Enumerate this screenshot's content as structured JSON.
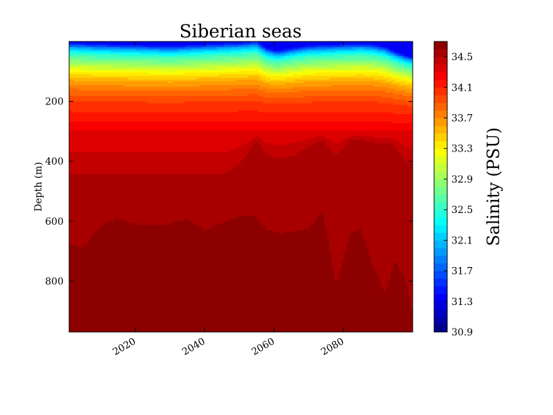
{
  "chart_data": {
    "type": "heatmap",
    "title": "Siberian seas",
    "xlabel": "",
    "ylabel": "Depth (m)",
    "xlim": [
      2001,
      2100
    ],
    "ylim": [
      970,
      0
    ],
    "x_ticks": [
      2020,
      2040,
      2060,
      2080
    ],
    "y_ticks": [
      200,
      400,
      600,
      800
    ],
    "colorbar": {
      "label": "Salinity (PSU)",
      "range": [
        30.9,
        34.7
      ],
      "ticks": [
        "30.9",
        "31.3",
        "31.7",
        "32.1",
        "32.5",
        "32.9",
        "33.3",
        "33.7",
        "34.1",
        "34.5"
      ],
      "colormap": "jet",
      "levels": 38
    },
    "profile_depth_m": [
      0,
      10,
      20,
      40,
      70,
      100,
      130,
      160,
      200,
      250,
      300,
      350,
      400,
      500,
      600,
      700,
      800,
      970
    ],
    "profile_salinity_psu": [
      31.3,
      31.6,
      32.0,
      32.5,
      32.9,
      33.3,
      33.6,
      33.8,
      34.0,
      34.15,
      34.3,
      34.42,
      34.5,
      34.55,
      34.6,
      34.64,
      34.67,
      34.7
    ],
    "contour_34_6_depth": {
      "x": [
        2001,
        2005,
        2010,
        2015,
        2020,
        2025,
        2030,
        2035,
        2040,
        2045,
        2050,
        2054,
        2058,
        2062,
        2065,
        2070,
        2074,
        2078,
        2082,
        2085,
        2088,
        2092,
        2095,
        2098,
        2100
      ],
      "depth": [
        675,
        690,
        615,
        590,
        610,
        612,
        610,
        590,
        630,
        605,
        583,
        580,
        630,
        640,
        635,
        625,
        565,
        810,
        640,
        625,
        730,
        840,
        730,
        800,
        910
      ]
    },
    "contour_34_5_depth": {
      "x": [
        2001,
        2010,
        2020,
        2030,
        2040,
        2045,
        2050,
        2055,
        2058,
        2062,
        2066,
        2070,
        2074,
        2078,
        2082,
        2086,
        2090,
        2094,
        2098,
        2100
      ],
      "depth": [
        440,
        445,
        440,
        440,
        440,
        445,
        410,
        330,
        380,
        390,
        380,
        350,
        330,
        380,
        330,
        330,
        340,
        340,
        400,
        410
      ]
    },
    "surface_fresh_anomaly": {
      "x": [
        2001,
        2010,
        2020,
        2030,
        2040,
        2050,
        2055,
        2058,
        2061,
        2065,
        2070,
        2075,
        2080,
        2085,
        2088,
        2092,
        2096,
        2100
      ],
      "offset_m": [
        0,
        5,
        8,
        12,
        6,
        0,
        -5,
        20,
        30,
        20,
        10,
        8,
        5,
        3,
        5,
        15,
        40,
        60
      ]
    }
  }
}
